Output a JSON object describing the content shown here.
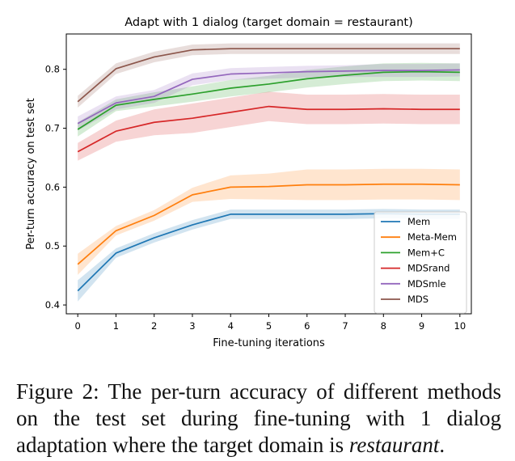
{
  "chart_data": {
    "type": "line",
    "title": "Adapt with 1 dialog (target domain = restaurant)",
    "xlabel": "Fine-tuning iterations",
    "ylabel": "Per-turn accuracy on test set",
    "x": [
      0,
      1,
      2,
      3,
      4,
      5,
      6,
      7,
      8,
      9,
      10
    ],
    "xlim": [
      -0.3,
      10.3
    ],
    "ylim": [
      0.385,
      0.86
    ],
    "xticks": [
      0,
      1,
      2,
      3,
      4,
      5,
      6,
      7,
      8,
      9,
      10
    ],
    "yticks": [
      0.4,
      0.5,
      0.6,
      0.7,
      0.8
    ],
    "legend_position": "lower-right",
    "grid": false,
    "series": [
      {
        "name": "Mem",
        "color": "#1f77b4",
        "values": [
          0.424,
          0.488,
          0.514,
          0.536,
          0.554,
          0.554,
          0.554,
          0.554,
          0.555,
          0.554,
          0.554
        ],
        "band": [
          0.018,
          0.008,
          0.008,
          0.008,
          0.008,
          0.008,
          0.008,
          0.008,
          0.008,
          0.008,
          0.008
        ]
      },
      {
        "name": "Meta-Mem",
        "color": "#ff7f0e",
        "values": [
          0.469,
          0.526,
          0.552,
          0.587,
          0.6,
          0.601,
          0.604,
          0.604,
          0.605,
          0.605,
          0.604
        ],
        "band": [
          0.018,
          0.008,
          0.009,
          0.012,
          0.02,
          0.022,
          0.026,
          0.026,
          0.026,
          0.026,
          0.026
        ]
      },
      {
        "name": "Mem+C",
        "color": "#2ca02c",
        "values": [
          0.698,
          0.739,
          0.749,
          0.758,
          0.768,
          0.775,
          0.784,
          0.79,
          0.795,
          0.796,
          0.795
        ],
        "band": [
          0.012,
          0.01,
          0.012,
          0.013,
          0.014,
          0.014,
          0.015,
          0.015,
          0.015,
          0.015,
          0.015
        ]
      },
      {
        "name": "MDSrand",
        "color": "#d62728",
        "values": [
          0.66,
          0.695,
          0.71,
          0.717,
          0.727,
          0.737,
          0.732,
          0.732,
          0.733,
          0.732,
          0.732
        ],
        "band": [
          0.015,
          0.018,
          0.022,
          0.025,
          0.025,
          0.025,
          0.025,
          0.025,
          0.025,
          0.025,
          0.025
        ]
      },
      {
        "name": "MDSmle",
        "color": "#9467bd",
        "values": [
          0.708,
          0.743,
          0.754,
          0.783,
          0.792,
          0.794,
          0.796,
          0.797,
          0.798,
          0.798,
          0.799
        ],
        "band": [
          0.012,
          0.011,
          0.011,
          0.01,
          0.01,
          0.01,
          0.01,
          0.01,
          0.011,
          0.011,
          0.011
        ]
      },
      {
        "name": "MDS",
        "color": "#8c564b",
        "values": [
          0.745,
          0.801,
          0.821,
          0.833,
          0.835,
          0.835,
          0.835,
          0.835,
          0.835,
          0.835,
          0.835
        ],
        "band": [
          0.01,
          0.009,
          0.009,
          0.009,
          0.009,
          0.009,
          0.009,
          0.009,
          0.009,
          0.009,
          0.009
        ]
      }
    ]
  },
  "caption": {
    "label": "Figure 2:",
    "text_before": "The per-turn accuracy of different methods on the test set during fine-tuning with 1 dialog adaptation where the target domain is",
    "emphasis": "restaurant",
    "text_after": "."
  }
}
